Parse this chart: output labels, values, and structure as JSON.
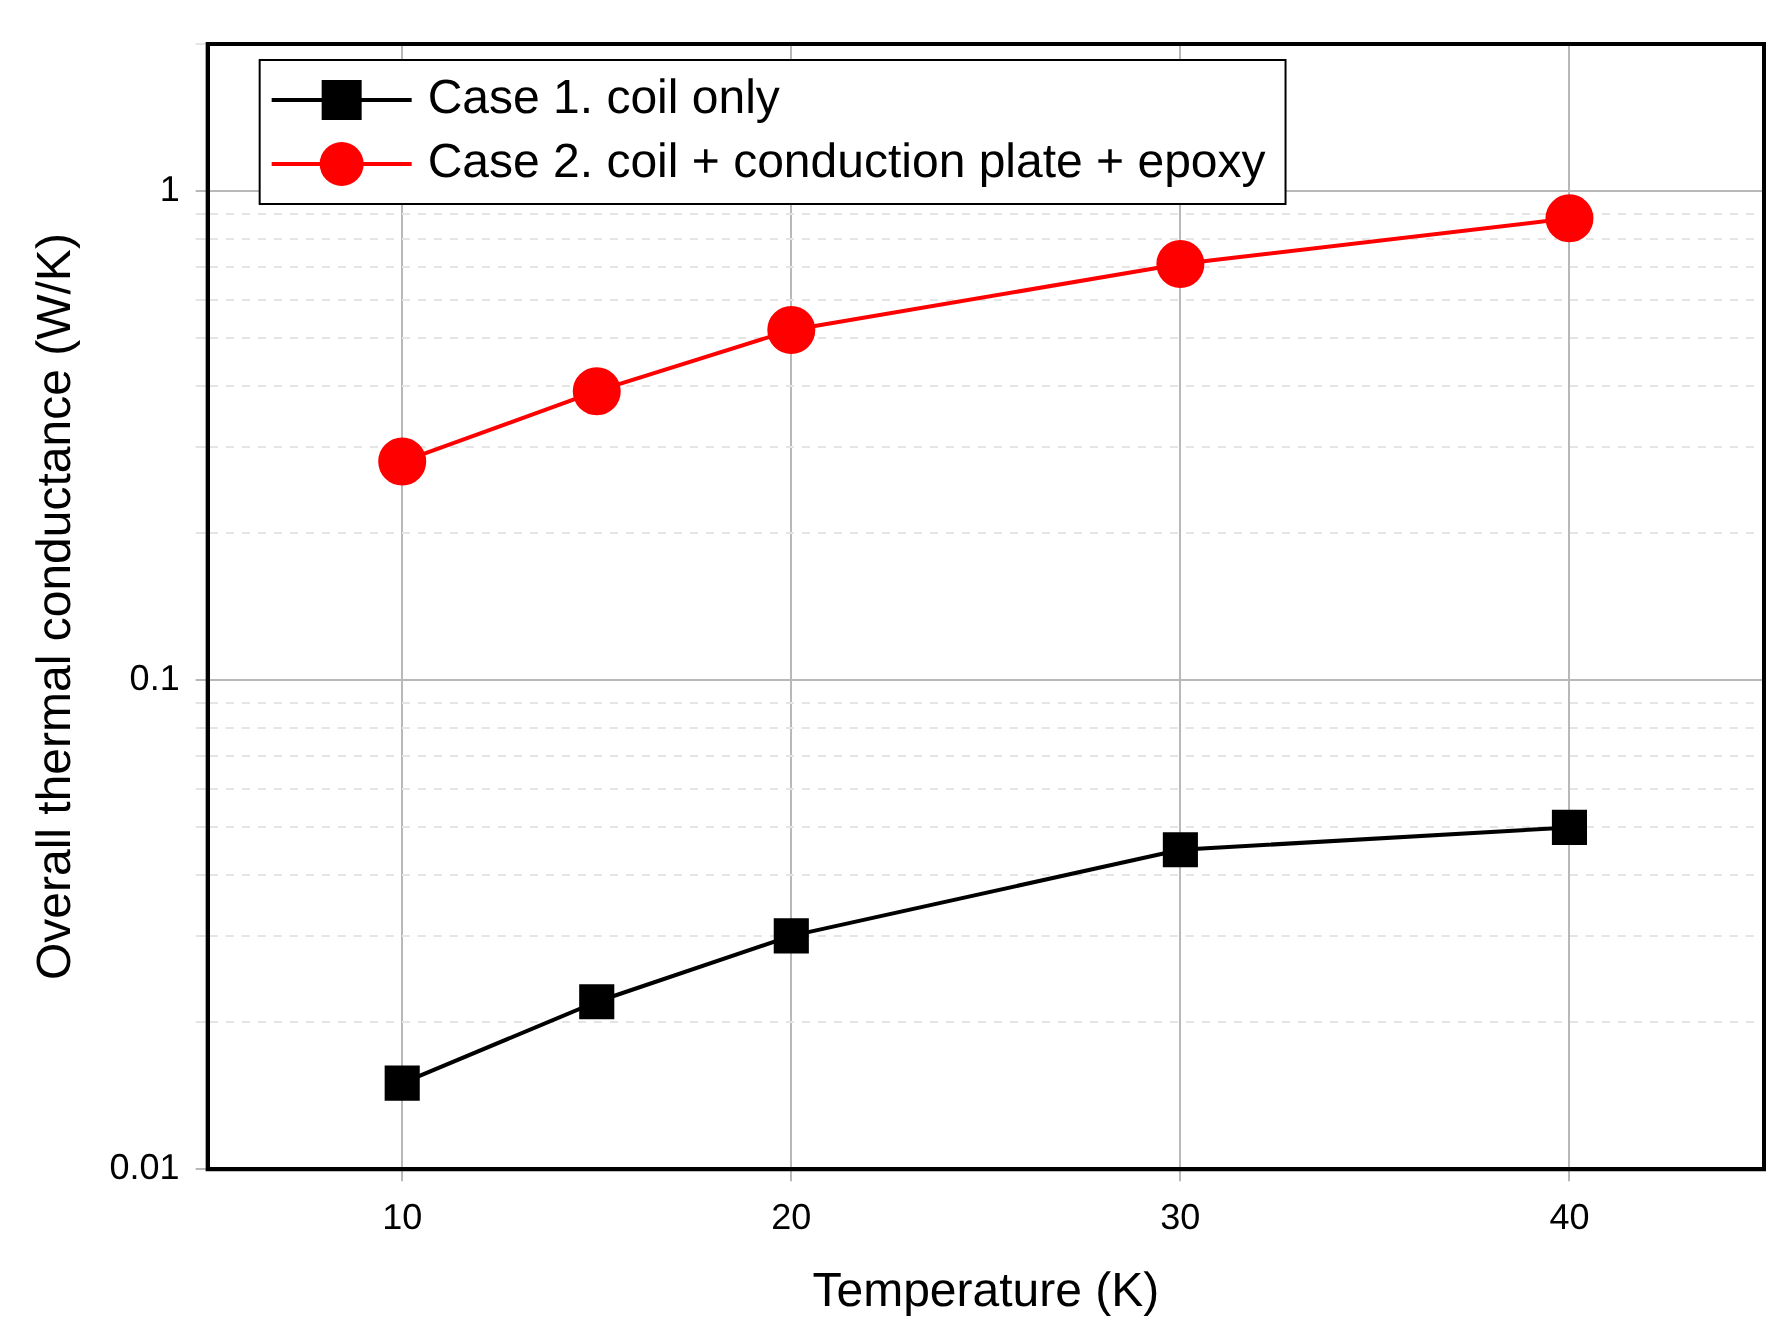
{
  "chart_data": {
    "type": "line",
    "xlabel": "Temperature (K)",
    "ylabel": "Overall thermal conductance (W/K)",
    "x": [
      10,
      15,
      20,
      30,
      40
    ],
    "series": [
      {
        "name": "Case 1. coil only",
        "color": "#000000",
        "marker": "square",
        "values": [
          0.015,
          0.022,
          0.03,
          0.045,
          0.05
        ]
      },
      {
        "name": "Case 2. coil + conduction plate + epoxy",
        "color": "#ff0000",
        "marker": "circle",
        "values": [
          0.28,
          0.39,
          0.52,
          0.71,
          0.88
        ]
      }
    ],
    "xlim": [
      5,
      45
    ],
    "xticks": [
      10,
      20,
      30,
      40
    ],
    "ylim": [
      0.01,
      2
    ],
    "log": "y",
    "yticks": [
      {
        "value": 0.01,
        "label": "0.01"
      },
      {
        "value": 0.02,
        "label": null
      },
      {
        "value": 0.03,
        "label": null
      },
      {
        "value": 0.04,
        "label": null
      },
      {
        "value": 0.05,
        "label": null
      },
      {
        "value": 0.06,
        "label": null
      },
      {
        "value": 0.07,
        "label": null
      },
      {
        "value": 0.08,
        "label": null
      },
      {
        "value": 0.09,
        "label": null
      },
      {
        "value": 0.1,
        "label": "0.1"
      },
      {
        "value": 0.2,
        "label": null
      },
      {
        "value": 0.3,
        "label": null
      },
      {
        "value": 0.4,
        "label": null
      },
      {
        "value": 0.5,
        "label": null
      },
      {
        "value": 0.6,
        "label": null
      },
      {
        "value": 0.7,
        "label": null
      },
      {
        "value": 0.8,
        "label": null
      },
      {
        "value": 0.9,
        "label": null
      },
      {
        "value": 1,
        "label": "1"
      },
      {
        "value": 2,
        "label": null
      }
    ],
    "grid": true,
    "legend": "top left",
    "line_style": "solid"
  }
}
